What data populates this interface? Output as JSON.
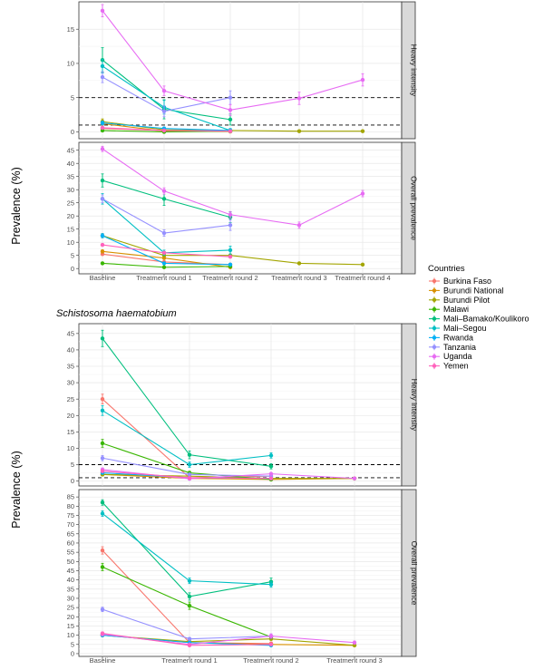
{
  "legend": {
    "title": "Countries",
    "items": [
      {
        "name": "Burkina Faso",
        "color": "#f8766d"
      },
      {
        "name": "Burundi National",
        "color": "#d89000"
      },
      {
        "name": "Burundi Pilot",
        "color": "#a3a500"
      },
      {
        "name": "Malawi",
        "color": "#39b600"
      },
      {
        "name": "Mali–Bamako/Koulikoro",
        "color": "#00bf7d"
      },
      {
        "name": "Mali–Segou",
        "color": "#00bfc4"
      },
      {
        "name": "Rwanda",
        "color": "#00b0f6"
      },
      {
        "name": "Tanzania",
        "color": "#9590ff"
      },
      {
        "name": "Uganda",
        "color": "#e76bf3"
      },
      {
        "name": "Yemen",
        "color": "#ff62bc"
      }
    ]
  },
  "chart_data": [
    {
      "type": "line",
      "title": "",
      "xlabel": "",
      "ylabel": "Prevalence (%)",
      "categories": [
        "Baseline",
        "Treatment round 1",
        "Treatment round 2",
        "Treatment round 3",
        "Treatment round 4"
      ],
      "panels": [
        {
          "strip": "Heavy intensity",
          "ylim": [
            -1,
            19
          ],
          "yticks": [
            0,
            5,
            10,
            15
          ],
          "hlines": [
            1,
            5
          ],
          "series": [
            {
              "name": "Burkina Faso",
              "x": [
                0,
                1,
                2
              ],
              "y": [
                0.5,
                0.2,
                0.1
              ],
              "err": [
                0.3,
                0.1,
                0.1
              ]
            },
            {
              "name": "Burundi National",
              "x": [
                0,
                1,
                2
              ],
              "y": [
                1.2,
                0.1,
                0.05
              ],
              "err": [
                0.4,
                0.1,
                0.05
              ]
            },
            {
              "name": "Burundi Pilot",
              "x": [
                0,
                1,
                2,
                3,
                4
              ],
              "y": [
                1.5,
                0.3,
                0.2,
                0.1,
                0.1
              ],
              "err": [
                0.4,
                0.1,
                0.1,
                0.1,
                0.05
              ]
            },
            {
              "name": "Malawi",
              "x": [
                0,
                1,
                2
              ],
              "y": [
                0.2,
                0.0,
                0.1
              ],
              "err": [
                0.1,
                0.05,
                0.05
              ]
            },
            {
              "name": "Mali–Bamako/Koulikoro",
              "x": [
                0,
                1,
                2
              ],
              "y": [
                10.5,
                3.3,
                1.8
              ],
              "err": [
                1.8,
                1.4,
                0.8
              ]
            },
            {
              "name": "Mali–Segou",
              "x": [
                0,
                1,
                2
              ],
              "y": [
                9.6,
                3.6,
                0.2
              ],
              "err": [
                1.0,
                1.0,
                0.3
              ]
            },
            {
              "name": "Rwanda",
              "x": [
                0,
                1,
                2
              ],
              "y": [
                1.3,
                0.5,
                0.2
              ],
              "err": [
                0.3,
                0.2,
                0.1
              ]
            },
            {
              "name": "Tanzania",
              "x": [
                0,
                1,
                2
              ],
              "y": [
                8.0,
                3.0,
                5.0
              ],
              "err": [
                0.8,
                0.8,
                1.0
              ]
            },
            {
              "name": "Uganda",
              "x": [
                0,
                1,
                2,
                3,
                4
              ],
              "y": [
                17.7,
                6.0,
                3.2,
                4.9,
                7.6
              ],
              "err": [
                0.9,
                0.7,
                0.8,
                0.9,
                0.9
              ]
            },
            {
              "name": "Yemen",
              "x": [
                0,
                1,
                2
              ],
              "y": [
                0.6,
                0.2,
                0.1
              ],
              "err": [
                0.2,
                0.1,
                0.1
              ]
            }
          ]
        },
        {
          "strip": "Overall prevalence",
          "ylim": [
            -2,
            48
          ],
          "yticks": [
            0,
            5,
            10,
            15,
            20,
            25,
            30,
            35,
            40,
            45
          ],
          "series": [
            {
              "name": "Burkina Faso",
              "x": [
                0,
                1,
                2
              ],
              "y": [
                5.5,
                2.5,
                1.5
              ],
              "err": [
                0.5,
                0.3,
                0.3
              ]
            },
            {
              "name": "Burundi National",
              "x": [
                0,
                1,
                2
              ],
              "y": [
                6.5,
                4.0,
                0.5
              ],
              "err": [
                0.6,
                0.5,
                0.2
              ]
            },
            {
              "name": "Burundi Pilot",
              "x": [
                0,
                1,
                2,
                3,
                4
              ],
              "y": [
                12.5,
                5.0,
                5.0,
                2.0,
                1.5
              ],
              "err": [
                0.8,
                0.5,
                0.5,
                0.3,
                0.3
              ]
            },
            {
              "name": "Malawi",
              "x": [
                0,
                1,
                2
              ],
              "y": [
                2.0,
                0.5,
                0.8
              ],
              "err": [
                0.4,
                0.2,
                0.2
              ]
            },
            {
              "name": "Mali–Bamako/Koulikoro",
              "x": [
                0,
                1,
                2
              ],
              "y": [
                33.5,
                26.5,
                19.5
              ],
              "err": [
                2.5,
                2.5,
                2.0
              ]
            },
            {
              "name": "Mali–Segou",
              "x": [
                0,
                1,
                2
              ],
              "y": [
                26.5,
                6.0,
                7.0
              ],
              "err": [
                2.0,
                1.0,
                1.5
              ]
            },
            {
              "name": "Rwanda",
              "x": [
                0,
                1,
                2
              ],
              "y": [
                12.5,
                2.0,
                1.5
              ],
              "err": [
                0.8,
                0.3,
                0.3
              ]
            },
            {
              "name": "Tanzania",
              "x": [
                0,
                1,
                2
              ],
              "y": [
                26.5,
                13.5,
                16.5
              ],
              "err": [
                1.5,
                1.2,
                2.0
              ]
            },
            {
              "name": "Uganda",
              "x": [
                0,
                1,
                2,
                3,
                4
              ],
              "y": [
                45.5,
                29.5,
                20.5,
                16.5,
                28.5
              ],
              "err": [
                1.0,
                1.2,
                1.2,
                1.2,
                1.2
              ]
            },
            {
              "name": "Yemen",
              "x": [
                0,
                1,
                2
              ],
              "y": [
                9.0,
                6.0,
                4.5
              ],
              "err": [
                0.5,
                0.4,
                0.4
              ]
            }
          ]
        }
      ]
    },
    {
      "type": "line",
      "title": "Schistosoma haematobium",
      "xlabel": "",
      "ylabel": "Prevalence (%)",
      "categories": [
        "Baseline",
        "Treatment round 1",
        "Treatment round 2",
        "Treatment round 3"
      ],
      "panels": [
        {
          "strip": "Heavy intensity",
          "ylim": [
            -1.5,
            48
          ],
          "yticks": [
            0,
            5,
            10,
            15,
            20,
            25,
            30,
            35,
            40,
            45
          ],
          "hlines": [
            1,
            5
          ],
          "series": [
            {
              "name": "Burkina Faso",
              "x": [
                0,
                1,
                2
              ],
              "y": [
                25.0,
                1.0,
                1.5
              ],
              "err": [
                1.5,
                0.3,
                0.3
              ]
            },
            {
              "name": "Burundi National",
              "x": [
                0,
                1,
                2,
                3
              ],
              "y": [
                2.0,
                0.8,
                0.5,
                0.8
              ],
              "err": [
                0.4,
                0.2,
                0.2,
                0.2
              ]
            },
            {
              "name": "Burundi Pilot",
              "x": [
                0,
                1,
                2,
                3
              ],
              "y": [
                2.0,
                1.5,
                0.8,
                0.8
              ],
              "err": [
                0.4,
                0.3,
                0.2,
                0.2
              ]
            },
            {
              "name": "Malawi",
              "x": [
                0,
                1,
                2
              ],
              "y": [
                11.5,
                2.5,
                0.5
              ],
              "err": [
                1.2,
                0.5,
                0.2
              ]
            },
            {
              "name": "Mali–Bamako/Koulikoro",
              "x": [
                0,
                1,
                2
              ],
              "y": [
                43.5,
                8.0,
                4.5
              ],
              "err": [
                2.5,
                1.2,
                0.8
              ]
            },
            {
              "name": "Mali–Segou",
              "x": [
                0,
                1,
                2
              ],
              "y": [
                21.5,
                5.0,
                7.8
              ],
              "err": [
                1.5,
                0.8,
                0.8
              ]
            },
            {
              "name": "Rwanda",
              "x": [
                0,
                1,
                2
              ],
              "y": [
                2.5,
                1.0,
                0.8
              ],
              "err": [
                0.3,
                0.2,
                0.2
              ]
            },
            {
              "name": "Tanzania",
              "x": [
                0,
                1,
                2
              ],
              "y": [
                7.0,
                2.0,
                1.5
              ],
              "err": [
                0.8,
                0.3,
                0.3
              ]
            },
            {
              "name": "Uganda",
              "x": [
                0,
                1,
                2,
                3
              ],
              "y": [
                3.5,
                0.7,
                2.2,
                0.8
              ],
              "err": [
                0.5,
                0.2,
                0.3,
                0.2
              ]
            },
            {
              "name": "Yemen",
              "x": [
                0,
                1,
                2
              ],
              "y": [
                3.0,
                1.0,
                0.8
              ],
              "err": [
                0.4,
                0.2,
                0.2
              ]
            }
          ]
        },
        {
          "strip": "Overall prevalence",
          "ylim": [
            -1.5,
            89
          ],
          "yticks": [
            0,
            5,
            10,
            15,
            20,
            25,
            30,
            35,
            40,
            45,
            50,
            55,
            60,
            65,
            70,
            75,
            80,
            85
          ],
          "series": [
            {
              "name": "Burkina Faso",
              "x": [
                0,
                1,
                2
              ],
              "y": [
                56.0,
                6.0,
                5.5
              ],
              "err": [
                2.0,
                1.0,
                0.8
              ]
            },
            {
              "name": "Burundi National",
              "x": [
                0,
                1,
                2,
                3
              ],
              "y": [
                10.0,
                6.0,
                5.0,
                4.5
              ],
              "err": [
                0.8,
                0.6,
                0.6,
                0.5
              ]
            },
            {
              "name": "Burundi Pilot",
              "x": [
                0,
                1,
                2,
                3
              ],
              "y": [
                10.0,
                6.5,
                8.0,
                4.5
              ],
              "err": [
                0.8,
                0.6,
                0.8,
                0.5
              ]
            },
            {
              "name": "Malawi",
              "x": [
                0,
                1,
                2
              ],
              "y": [
                47.0,
                26.0,
                9.0
              ],
              "err": [
                2.0,
                2.0,
                1.0
              ]
            },
            {
              "name": "Mali–Bamako/Koulikoro",
              "x": [
                0,
                1,
                2
              ],
              "y": [
                82.0,
                31.0,
                39.0
              ],
              "err": [
                1.5,
                2.0,
                2.0
              ]
            },
            {
              "name": "Mali–Segou",
              "x": [
                0,
                1,
                2
              ],
              "y": [
                76.0,
                39.5,
                37.5
              ],
              "err": [
                1.5,
                1.5,
                1.5
              ]
            },
            {
              "name": "Rwanda",
              "x": [
                0,
                1,
                2
              ],
              "y": [
                10.0,
                6.0,
                4.5
              ],
              "err": [
                0.8,
                0.6,
                0.5
              ]
            },
            {
              "name": "Tanzania",
              "x": [
                0,
                1,
                2
              ],
              "y": [
                24.0,
                8.0,
                9.5
              ],
              "err": [
                1.2,
                0.8,
                1.2
              ]
            },
            {
              "name": "Uganda",
              "x": [
                0,
                1,
                2,
                3
              ],
              "y": [
                10.5,
                5.0,
                9.5,
                6.0
              ],
              "err": [
                0.8,
                0.6,
                1.2,
                0.8
              ]
            },
            {
              "name": "Yemen",
              "x": [
                0,
                1,
                2
              ],
              "y": [
                11.0,
                4.5,
                5.0
              ],
              "err": [
                0.8,
                0.5,
                0.5
              ]
            }
          ]
        }
      ]
    }
  ]
}
